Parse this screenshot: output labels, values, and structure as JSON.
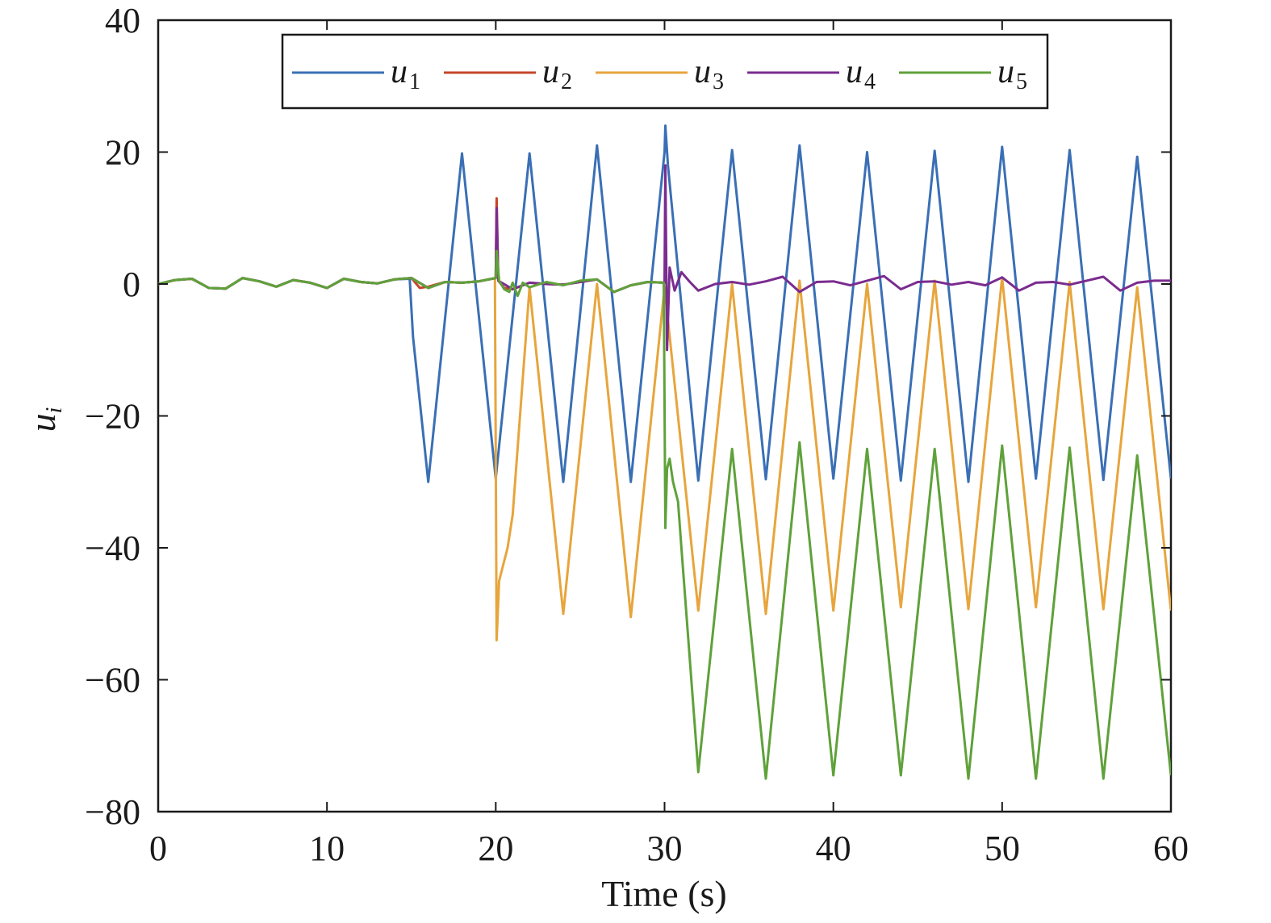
{
  "chart_data": {
    "type": "line",
    "title": "",
    "xlabel": "Time (s)",
    "ylabel": "u",
    "ylabel_sub": "i",
    "xlim": [
      0,
      60
    ],
    "ylim": [
      -80,
      40
    ],
    "xticks": [
      0,
      10,
      20,
      30,
      40,
      50,
      60
    ],
    "yticks": [
      40,
      20,
      0,
      -20,
      -40,
      -60,
      -80
    ],
    "xtick_labels": [
      "0",
      "10",
      "20",
      "30",
      "40",
      "50",
      "60"
    ],
    "ytick_labels": [
      "40",
      "20",
      "0",
      "−20",
      "−40",
      "−60",
      "−80"
    ],
    "grid": false,
    "legend_position": "top-center",
    "series": [
      {
        "name": "u",
        "sub": "1",
        "color": "#3a6fb5",
        "x": [
          0,
          1,
          2,
          3,
          4,
          5,
          6,
          7,
          8,
          9,
          10,
          11,
          12,
          13,
          14,
          14.9,
          15.1,
          16,
          18,
          20,
          22,
          24,
          26,
          28,
          30,
          30.05,
          30.2,
          32,
          34,
          36,
          38,
          40,
          42,
          44,
          46,
          48,
          50,
          52,
          54,
          56,
          58,
          60
        ],
        "y": [
          0,
          0.6,
          0.8,
          -0.6,
          -0.7,
          0.9,
          0.4,
          -0.4,
          0.6,
          0.2,
          -0.6,
          0.8,
          0.3,
          0.1,
          0.7,
          0.8,
          -8,
          -30,
          19.8,
          -29.5,
          19.8,
          -30,
          21,
          -30,
          20,
          24,
          18,
          -29.8,
          20.3,
          -29.6,
          21,
          -29.5,
          20,
          -29.8,
          20.2,
          -30,
          20.8,
          -29.5,
          20.3,
          -29.7,
          19.3,
          -29.5
        ]
      },
      {
        "name": "u",
        "sub": "2",
        "color": "#c6462b",
        "x": [
          0,
          1,
          2,
          3,
          4,
          5,
          6,
          7,
          8,
          9,
          10,
          11,
          12,
          13,
          14,
          15,
          15.5,
          16,
          17,
          18,
          19,
          20,
          20.05,
          20.15,
          20.5,
          21,
          22,
          23,
          24,
          25,
          26,
          27,
          28,
          29,
          30
        ],
        "y": [
          0,
          0.6,
          0.8,
          -0.6,
          -0.7,
          0.9,
          0.4,
          -0.4,
          0.6,
          0.2,
          -0.6,
          0.8,
          0.3,
          0.1,
          0.7,
          0.9,
          -0.6,
          -0.4,
          0.3,
          0.2,
          0.4,
          0.9,
          13,
          0.5,
          -0.6,
          -0.8,
          0.2,
          0,
          -0.1,
          0.3,
          0.7,
          -1.2,
          -0.2,
          0.3,
          0.2
        ]
      },
      {
        "name": "u",
        "sub": "3",
        "color": "#e7a53c",
        "x": [
          0,
          1,
          2,
          3,
          4,
          5,
          6,
          7,
          8,
          9,
          10,
          11,
          12,
          13,
          14,
          15,
          16,
          17,
          18,
          19,
          19.95,
          20.05,
          20.2,
          20.4,
          20.7,
          21,
          22,
          24,
          26,
          28,
          30,
          32,
          34,
          36,
          38,
          40,
          42,
          44,
          46,
          48,
          50,
          52,
          54,
          56,
          58,
          60
        ],
        "y": [
          0,
          0.6,
          0.8,
          -0.6,
          -0.7,
          0.9,
          0.4,
          -0.4,
          0.6,
          0.2,
          -0.6,
          0.8,
          0.3,
          0.1,
          0.7,
          0.9,
          -0.6,
          0.3,
          0.2,
          0.4,
          0.9,
          -54,
          -45,
          -43,
          -40,
          -35,
          -0.5,
          -50,
          0,
          -50.5,
          -0.5,
          -49.5,
          0,
          -50,
          0.5,
          -49.5,
          0,
          -49,
          0.5,
          -49.3,
          1,
          -49,
          0.3,
          -49.3,
          -0.5,
          -49.5
        ]
      },
      {
        "name": "u",
        "sub": "4",
        "color": "#7a2c8f",
        "x": [
          0,
          1,
          2,
          3,
          4,
          5,
          6,
          7,
          8,
          9,
          10,
          11,
          12,
          13,
          14,
          15,
          16,
          17,
          18,
          19,
          20,
          20.05,
          20.15,
          21,
          22,
          23,
          24,
          25,
          26,
          27,
          28,
          29,
          30,
          30.05,
          30.15,
          30.3,
          30.6,
          31,
          31.5,
          32,
          33,
          34,
          35,
          36,
          37,
          38,
          39,
          40,
          41,
          42,
          43,
          44,
          45,
          46,
          47,
          48,
          49,
          50,
          51,
          52,
          53,
          54,
          55,
          56,
          57,
          58,
          59,
          60
        ],
        "y": [
          0,
          0.6,
          0.8,
          -0.6,
          -0.7,
          0.9,
          0.4,
          -0.4,
          0.6,
          0.2,
          -0.6,
          0.8,
          0.3,
          0.1,
          0.7,
          0.9,
          -0.6,
          0.3,
          0.2,
          0.4,
          0.9,
          11.5,
          0.5,
          -0.8,
          0.2,
          0,
          -0.1,
          0.3,
          0.7,
          -1.2,
          -0.2,
          0.3,
          0.2,
          18,
          -10,
          2.5,
          -1,
          1.8,
          0.3,
          -1,
          0,
          0.3,
          -0.1,
          0.4,
          1.1,
          -1.2,
          0.3,
          0.4,
          -0.2,
          0.5,
          1.2,
          -0.8,
          0.3,
          0.4,
          -0.1,
          0.3,
          -0.2,
          1,
          -1,
          0.2,
          0.3,
          -0.1,
          0.5,
          1.1,
          -1,
          0.2,
          0.5,
          0.5
        ]
      },
      {
        "name": "u",
        "sub": "5",
        "color": "#5fa13a",
        "x": [
          0,
          1,
          2,
          3,
          4,
          5,
          6,
          7,
          8,
          9,
          10,
          11,
          12,
          13,
          14,
          15,
          16,
          17,
          18,
          19,
          20,
          20.05,
          20.2,
          20.5,
          20.8,
          21,
          21.3,
          21.6,
          22,
          23,
          24,
          25,
          26,
          27,
          28,
          29,
          29.95,
          30.05,
          30.15,
          30.3,
          30.5,
          30.8,
          31,
          32,
          34,
          36,
          38,
          40,
          42,
          44,
          46,
          48,
          50,
          52,
          54,
          56,
          58,
          60
        ],
        "y": [
          0,
          0.6,
          0.8,
          -0.6,
          -0.7,
          0.9,
          0.4,
          -0.4,
          0.6,
          0.2,
          -0.6,
          0.8,
          0.3,
          0.1,
          0.7,
          0.9,
          -0.6,
          0.3,
          0.2,
          0.4,
          0.9,
          5,
          0.5,
          -0.8,
          -1.2,
          0.2,
          -1.8,
          0.2,
          -0.5,
          0.3,
          -0.2,
          0.5,
          0.7,
          -1.2,
          -0.2,
          0.3,
          0.2,
          -37,
          -28,
          -26.5,
          -30,
          -33,
          -40,
          -74,
          -25,
          -75,
          -24,
          -74.5,
          -25,
          -74.5,
          -25,
          -75,
          -24.5,
          -75,
          -24.8,
          -75,
          -26,
          -74.5
        ]
      }
    ]
  }
}
